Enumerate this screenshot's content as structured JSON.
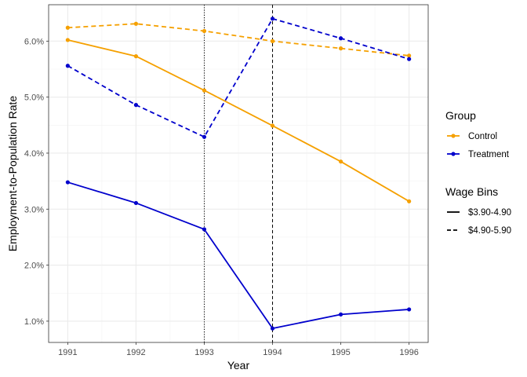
{
  "chart_data": {
    "type": "line",
    "xlabel": "Year",
    "ylabel": "Employment-to-Population Rate",
    "x": [
      1991,
      1992,
      1993,
      1994,
      1995,
      1996
    ],
    "x_tick_labels": [
      "1991",
      "1992",
      "1993",
      "1994",
      "1995",
      "1996"
    ],
    "xlim": [
      1990.72,
      1996.28
    ],
    "ylim": [
      0.62,
      6.65
    ],
    "y_ticks": [
      1.0,
      2.0,
      3.0,
      4.0,
      5.0,
      6.0
    ],
    "y_tick_labels": [
      "1.0%",
      "2.0%",
      "3.0%",
      "4.0%",
      "5.0%",
      "6.0%"
    ],
    "grid": true,
    "vlines": [
      {
        "x": 1993,
        "style": "dotted"
      },
      {
        "x": 1994,
        "style": "dashed"
      }
    ],
    "colors": {
      "Control": "#f5a000",
      "Treatment": "#0000cc"
    },
    "series": [
      {
        "group": "Control",
        "bin": "$3.90-4.90",
        "linestyle": "solid",
        "values": [
          6.02,
          5.73,
          5.12,
          4.49,
          3.85,
          3.14
        ]
      },
      {
        "group": "Control",
        "bin": "$4.90-5.90",
        "linestyle": "dashed",
        "values": [
          6.24,
          6.31,
          6.18,
          6.0,
          5.87,
          5.74
        ]
      },
      {
        "group": "Treatment",
        "bin": "$3.90-4.90",
        "linestyle": "solid",
        "values": [
          3.48,
          3.11,
          2.64,
          0.87,
          1.12,
          1.21
        ]
      },
      {
        "group": "Treatment",
        "bin": "$4.90-5.90",
        "linestyle": "dashed",
        "values": [
          5.56,
          4.86,
          4.29,
          6.4,
          6.05,
          5.68
        ]
      }
    ],
    "legends": [
      {
        "title": "Group",
        "placement": "right",
        "items": [
          {
            "label": "Control",
            "color": "#f5a000",
            "linestyle": "solid",
            "marker": true
          },
          {
            "label": "Treatment",
            "color": "#0000cc",
            "linestyle": "solid",
            "marker": true
          }
        ]
      },
      {
        "title": "Wage Bins",
        "placement": "right",
        "items": [
          {
            "label": "$3.90-4.90",
            "color": "#000000",
            "linestyle": "solid",
            "marker": false
          },
          {
            "label": "$4.90-5.90",
            "color": "#000000",
            "linestyle": "dashed",
            "marker": false
          }
        ]
      }
    ]
  }
}
